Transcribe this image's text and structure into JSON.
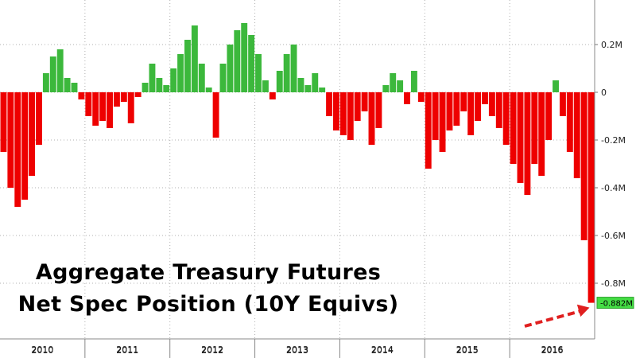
{
  "chart_data": {
    "type": "bar",
    "title_lines": [
      "Aggregate Treasury Futures",
      "Net Spec Position (10Y Equivs)"
    ],
    "xlabel": "",
    "ylabel": "",
    "units": "M",
    "ylim": [
      -0.9,
      0.3
    ],
    "y_ticks": [
      -0.8,
      -0.6,
      -0.4,
      -0.2,
      0,
      0.2
    ],
    "y_tick_labels": [
      "-0.8M",
      "-0.6M",
      "-0.4M",
      "-0.2M",
      "0",
      "0.2M"
    ],
    "x_years": [
      "2010",
      "2011",
      "2012",
      "2013",
      "2014",
      "2015",
      "2016"
    ],
    "grid": true,
    "legend": "none",
    "positive_color": "#3cb83c",
    "negative_color": "#ee0000",
    "arrow_color": "#e02020",
    "last_value_label": "-0.882M",
    "x": [
      "2010-01",
      "2010-02",
      "2010-03",
      "2010-04",
      "2010-05",
      "2010-06",
      "2010-07",
      "2010-08",
      "2010-09",
      "2010-10",
      "2010-11",
      "2010-12",
      "2011-01",
      "2011-02",
      "2011-03",
      "2011-04",
      "2011-05",
      "2011-06",
      "2011-07",
      "2011-08",
      "2011-09",
      "2011-10",
      "2011-11",
      "2011-12",
      "2012-01",
      "2012-02",
      "2012-03",
      "2012-04",
      "2012-05",
      "2012-06",
      "2012-07",
      "2012-08",
      "2012-09",
      "2012-10",
      "2012-11",
      "2012-12",
      "2013-01",
      "2013-02",
      "2013-03",
      "2013-04",
      "2013-05",
      "2013-06",
      "2013-07",
      "2013-08",
      "2013-09",
      "2013-10",
      "2013-11",
      "2013-12",
      "2014-01",
      "2014-02",
      "2014-03",
      "2014-04",
      "2014-05",
      "2014-06",
      "2014-07",
      "2014-08",
      "2014-09",
      "2014-10",
      "2014-11",
      "2014-12",
      "2015-01",
      "2015-02",
      "2015-03",
      "2015-04",
      "2015-05",
      "2015-06",
      "2015-07",
      "2015-08",
      "2015-09",
      "2015-10",
      "2015-11",
      "2015-12",
      "2016-01",
      "2016-02",
      "2016-03",
      "2016-04",
      "2016-05",
      "2016-06",
      "2016-07",
      "2016-08",
      "2016-09",
      "2016-10",
      "2016-11",
      "2016-12"
    ],
    "values": [
      -0.25,
      -0.4,
      -0.48,
      -0.45,
      -0.35,
      -0.22,
      0.08,
      0.15,
      0.18,
      0.06,
      0.04,
      -0.03,
      -0.1,
      -0.14,
      -0.12,
      -0.15,
      -0.06,
      -0.04,
      -0.13,
      -0.02,
      0.04,
      0.12,
      0.06,
      0.03,
      0.1,
      0.16,
      0.22,
      0.28,
      0.12,
      0.02,
      -0.19,
      0.12,
      0.2,
      0.26,
      0.29,
      0.24,
      0.16,
      0.05,
      -0.03,
      0.09,
      0.16,
      0.2,
      0.06,
      0.03,
      0.08,
      0.02,
      -0.1,
      -0.16,
      -0.18,
      -0.2,
      -0.12,
      -0.08,
      -0.22,
      -0.15,
      0.03,
      0.08,
      0.05,
      -0.05,
      0.09,
      -0.04,
      -0.32,
      -0.2,
      -0.25,
      -0.16,
      -0.14,
      -0.08,
      -0.18,
      -0.12,
      -0.05,
      -0.1,
      -0.15,
      -0.22,
      -0.3,
      -0.38,
      -0.43,
      -0.3,
      -0.35,
      -0.2,
      0.05,
      -0.1,
      -0.25,
      -0.36,
      -0.62,
      -0.882
    ]
  }
}
